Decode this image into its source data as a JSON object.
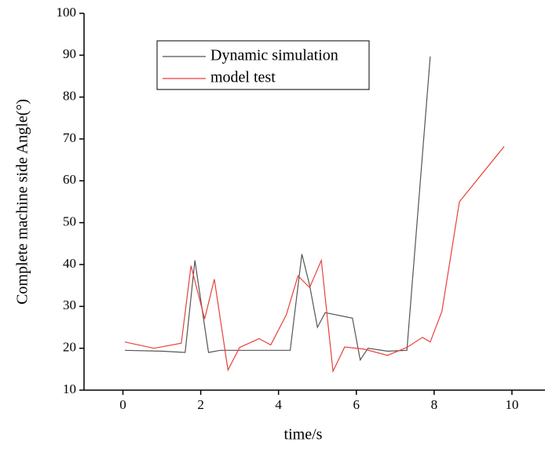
{
  "chart_data": {
    "type": "line",
    "x_label": "time/s",
    "y_label": "Complete machine side Angle(°)",
    "xlim": [
      -1,
      10.85
    ],
    "ylim": [
      10,
      100
    ],
    "xticks": [
      0,
      2,
      4,
      6,
      8,
      10
    ],
    "yticks": [
      10,
      20,
      30,
      40,
      50,
      60,
      70,
      80,
      90,
      100
    ],
    "series": [
      {
        "name": "Dynamic simulation",
        "color": "#555555",
        "x": [
          0.05,
          1,
          1.6,
          1.85,
          2.2,
          2.5,
          3,
          4.3,
          4.6,
          4.8,
          5.0,
          5.2,
          5.9,
          6.1,
          6.3,
          6.8,
          7.3,
          7.9
        ],
        "values": [
          19.5,
          19.3,
          19,
          41,
          19,
          19.5,
          19.5,
          19.5,
          42.5,
          35,
          25,
          28.5,
          27.2,
          17.2,
          20,
          19.3,
          19.5,
          89.7
        ]
      },
      {
        "name": "model test",
        "color": "#e8413a",
        "x": [
          0.05,
          0.8,
          1.5,
          1.75,
          2.1,
          2.35,
          2.7,
          3.0,
          3.5,
          3.8,
          4.2,
          4.5,
          4.8,
          5.1,
          5.4,
          5.7,
          6.2,
          6.8,
          7.3,
          7.7,
          7.9,
          8.2,
          8.65,
          9.8
        ],
        "values": [
          21.5,
          20,
          21.2,
          39.7,
          27,
          36.5,
          14.8,
          20.2,
          22.3,
          20.8,
          28,
          37.3,
          34.5,
          41,
          14.5,
          20.3,
          19.8,
          18.3,
          20.2,
          22.6,
          21.5,
          28.8,
          55,
          68.2
        ]
      }
    ]
  }
}
